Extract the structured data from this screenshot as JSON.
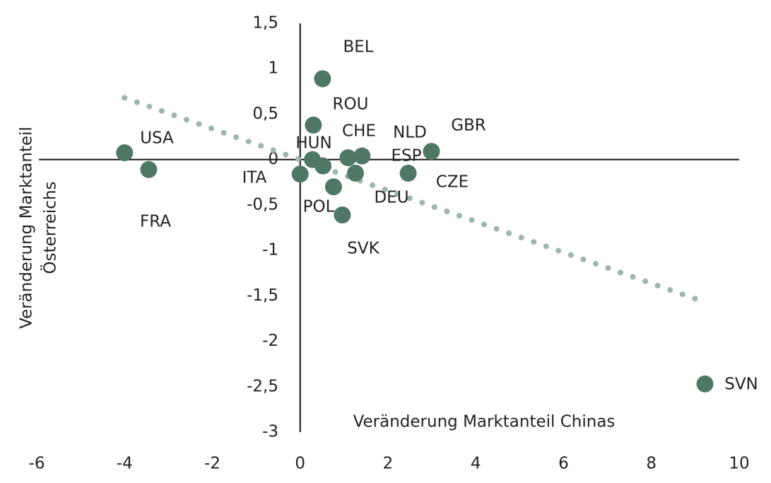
{
  "chart_data": {
    "type": "scatter",
    "xlabel": "Veränderung Marktanteil Chinas",
    "ylabel": [
      "Veränderung Marktanteil",
      "Österreichs"
    ],
    "xlim": [
      -6,
      10
    ],
    "xticks": [
      -6,
      -4,
      -2,
      0,
      2,
      4,
      6,
      8,
      10
    ],
    "ylim": [
      -3,
      1.5
    ],
    "yticks": [
      {
        "value": -3,
        "label": "-3"
      },
      {
        "value": -2.5,
        "label": "-2,5"
      },
      {
        "value": -2,
        "label": "-2"
      },
      {
        "value": -1.5,
        "label": "-1,5"
      },
      {
        "value": -1,
        "label": "-1"
      },
      {
        "value": -0.5,
        "label": "-0,5"
      },
      {
        "value": 0,
        "label": "0"
      },
      {
        "value": 0.5,
        "label": "0,5"
      },
      {
        "value": 1,
        "label": "1"
      },
      {
        "value": 1.5,
        "label": "1,5"
      }
    ],
    "color": "#4f7766",
    "labels": [
      "USA",
      "FRA",
      "BEL",
      "ROU",
      "HUN",
      "ITA",
      "POL",
      "SVK",
      "CHE",
      "NLD",
      "ESP",
      "DEU",
      "GBR",
      "CZE",
      "SVN"
    ],
    "x": [
      -4.0,
      -3.45,
      0.51,
      0.3,
      0.28,
      0.0,
      0.76,
      0.96,
      1.09,
      1.41,
      1.26,
      0.52,
      2.99,
      2.46,
      9.22
    ],
    "values": [
      0.075,
      -0.11,
      0.89,
      0.38,
      0.0,
      -0.16,
      -0.3,
      -0.61,
      0.02,
      0.04,
      -0.15,
      -0.07,
      0.09,
      -0.15,
      -2.47
    ],
    "trendline": {
      "color": "#9db7aa",
      "x": [
        -4.0,
        9.1
      ],
      "values": [
        0.68,
        -1.55
      ]
    }
  }
}
